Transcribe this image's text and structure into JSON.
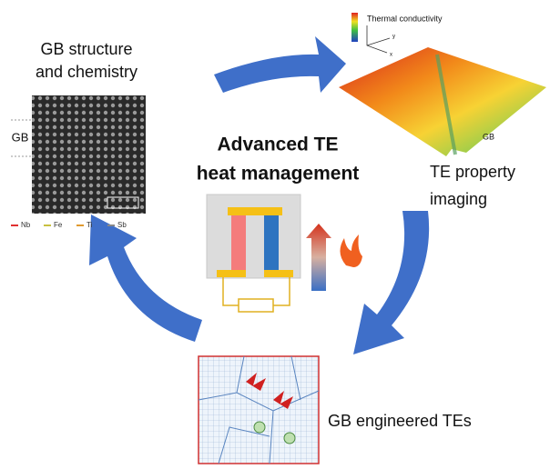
{
  "structure_panel": {
    "title_lines": [
      "GB structure",
      "and chemistry"
    ],
    "gb_label": "GB",
    "legend": [
      "Nb",
      "Fe",
      "Ti",
      "Sb"
    ]
  },
  "imaging_panel": {
    "colorbar_label": "Thermal conductivity",
    "axes": [
      "y",
      "x"
    ],
    "gb_label": "GB",
    "caption_lines": [
      "TE property",
      "imaging"
    ]
  },
  "center": {
    "title_lines": [
      "Advanced TE",
      "heat management"
    ]
  },
  "engineered_panel": {
    "caption": "GB engineered TEs"
  }
}
